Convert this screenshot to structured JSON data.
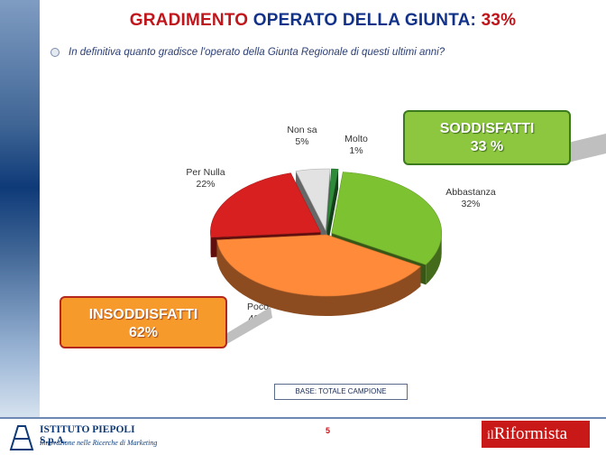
{
  "header": {
    "title_part1": "GRADIMENTO",
    "title_part2": "OPERATO DELLA GIUNTA:",
    "title_part3": "33%",
    "question": "In definitiva quanto gradisce l'operato della Giunta Regionale di questi ultimi anni?"
  },
  "chart_data": {
    "type": "pie",
    "categories": [
      "Molto",
      "Abbastanza",
      "Poco",
      "Per Nulla",
      "Non sa"
    ],
    "values": [
      1,
      32,
      40,
      22,
      5
    ],
    "value_labels": [
      "1%",
      "32%",
      "40%",
      "22%",
      "5%"
    ],
    "colors": [
      "#2e8b3a",
      "#7cc231",
      "#ff8a3a",
      "#d82020",
      "#e2e2e2"
    ]
  },
  "summary": {
    "soddisfatti_label": "SODDISFATTI",
    "soddisfatti_value": "33 %",
    "insoddisfatti_label": "INSODDISFATTI",
    "insoddisfatti_value": "62%"
  },
  "footer": {
    "base": "BASE: TOTALE CAMPIONE",
    "page": "5",
    "company_name": "ISTITUTO PIEPOLI S.p.A.",
    "company_tagline": "Innovazione nelle Ricerche di Marketing",
    "partner_il": "il",
    "partner_name": "Riformista"
  }
}
